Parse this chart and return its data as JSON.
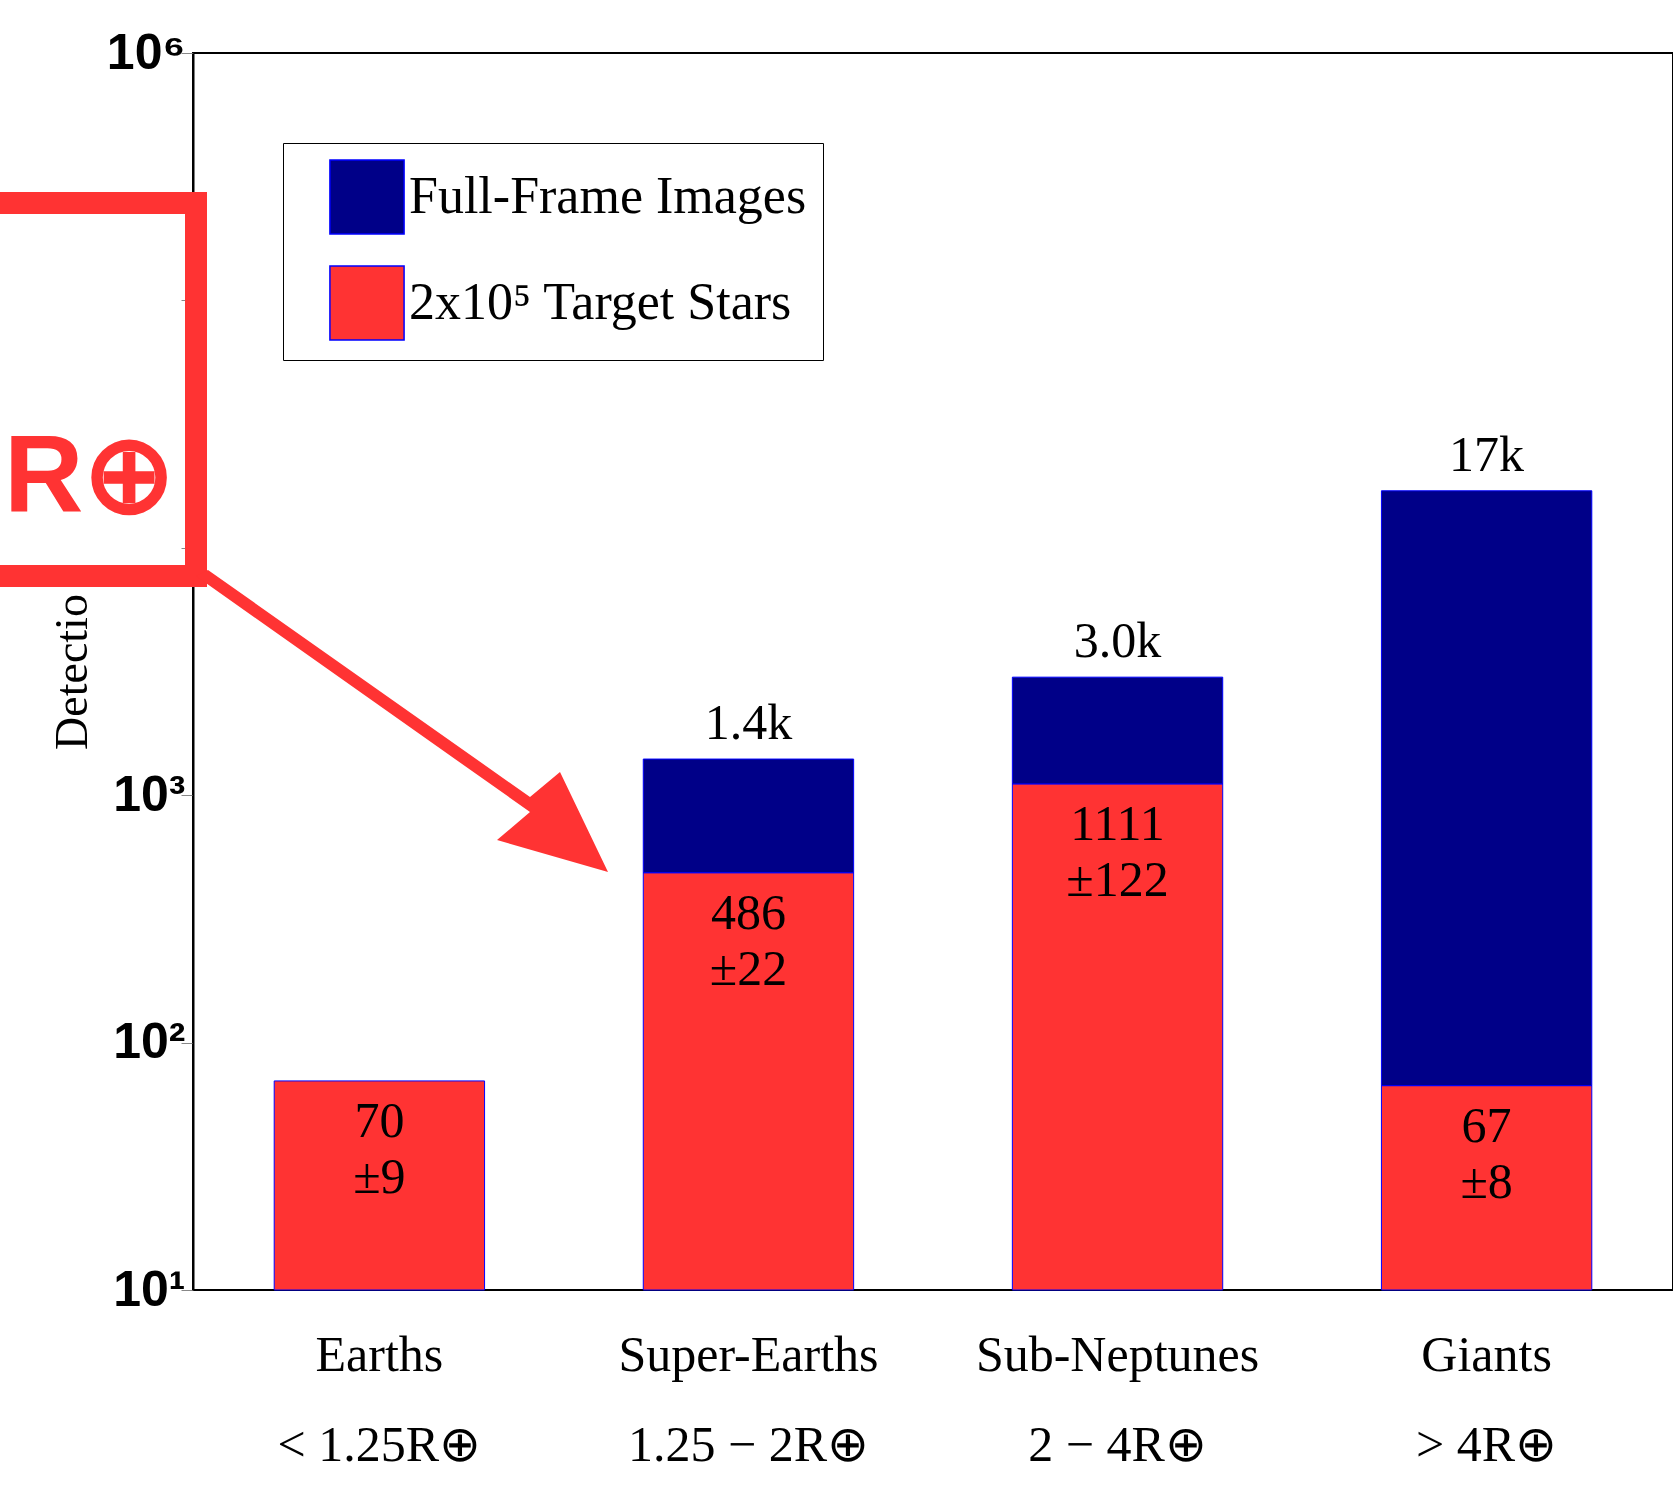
{
  "chart_data": {
    "type": "bar",
    "stacked": true,
    "log": true,
    "ylabel": "Detectio",
    "categories": [
      "Earths\n< 1.25R⊕",
      "Super-Earths\n1.25 − 2R⊕",
      "Sub-Neptunes\n2 − 4R⊕",
      "Giants\n> 4R⊕"
    ],
    "series": [
      {
        "name": "2x10⁵ Target Stars",
        "color": "#ff3333",
        "values": [
          70,
          486,
          1111,
          67
        ],
        "value_labels": [
          "70\n±9",
          "486\n±22",
          "1111\n±122",
          "67\n±8"
        ]
      },
      {
        "name": "Full-Frame Images",
        "color": "#000088",
        "values": [
          null,
          914,
          1889,
          16933
        ]
      }
    ],
    "totals": [
      null,
      "1.4k",
      "3.0k",
      "17k"
    ],
    "ylim": [
      10,
      1000000
    ],
    "yticks": [
      {
        "value": 10,
        "label": "10¹"
      },
      {
        "value": 100,
        "label": "10²"
      },
      {
        "value": 1000,
        "label": "10³"
      },
      {
        "value": 10000,
        "label": null
      },
      {
        "value": 100000,
        "label": null
      },
      {
        "value": 1000000,
        "label": "10⁶"
      }
    ],
    "legend": "top left",
    "annotations": [
      "R⊕"
    ]
  }
}
